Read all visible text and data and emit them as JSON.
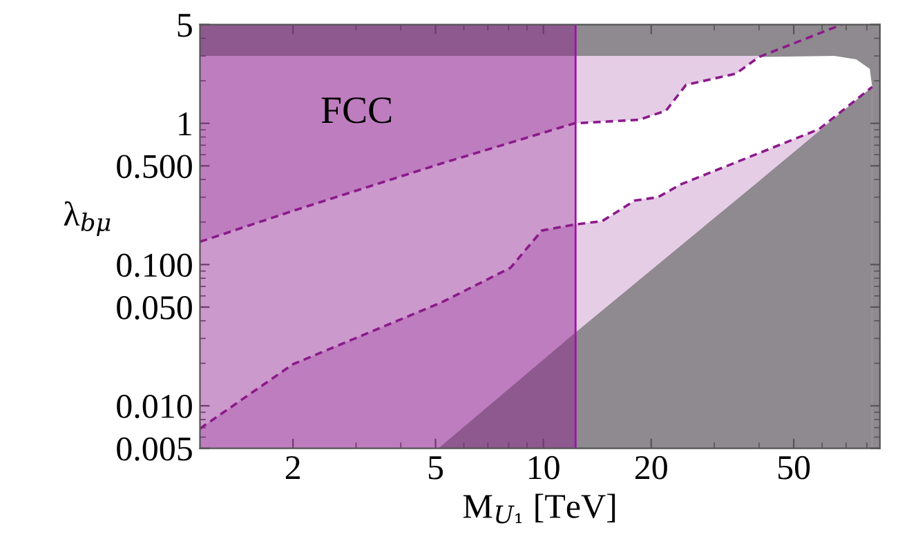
{
  "chart_data": {
    "type": "line",
    "xlabel": "M$_{U₁}$ [TeV]",
    "ylabel": "λ$_{bμ}$",
    "log": "xy",
    "grid": false,
    "xlim": [
      1.1,
      87
    ],
    "xticks": [
      2,
      5,
      10,
      20,
      50
    ],
    "ylim": [
      0.005,
      5
    ],
    "yticks": [
      5,
      1,
      {
        "value": 0.5,
        "label": "0.500"
      },
      {
        "value": 0.1,
        "label": "0.100"
      },
      {
        "value": 0.05,
        "label": "0.050"
      },
      {
        "value": 0.01,
        "label": "0.010"
      },
      {
        "value": 0.005,
        "label": "0.005"
      }
    ],
    "series": [
      {
        "type": "area",
        "color": "#e6cde6",
        "x": [
          1.1,
          40
        ],
        "values": [
          3,
          3
        ]
      },
      {
        "type": "area",
        "color": "#ffffff",
        "x": [
          1.1,
          2,
          5.2,
          8.1,
          12.2,
          14.6,
          18.5,
          22,
          25,
          34.5,
          40,
          65,
          74.7,
          81.5,
          82.8
        ],
        "values": [
          0.145,
          0.24,
          0.52,
          0.73,
          1.0,
          1.03,
          1.06,
          1.23,
          1.87,
          2.25,
          2.95,
          3,
          2.84,
          2.43,
          1.81
        ]
      },
      {
        "type": "area",
        "color": "#8b1a8b",
        "line_style": "dashed",
        "x": [
          1.1,
          2,
          5.2,
          8.1,
          9.9,
          12.2,
          14.6,
          18,
          20.9,
          24.2,
          58.9,
          82.8
        ],
        "values": [
          0.0069,
          0.0197,
          0.054,
          0.095,
          0.174,
          0.192,
          0.203,
          0.284,
          0.3,
          0.37,
          0.91,
          1.81
        ]
      },
      {
        "type": "area",
        "color": "#8f8a8f",
        "x": [
          5.1,
          12.2,
          40,
          82.8
        ],
        "values": [
          0.005,
          0.0325,
          0.39,
          1.81
        ]
      },
      {
        "color": "#8b1a8b",
        "line_style": "dashed",
        "x": [
          1.1,
          2,
          5.2,
          12.2,
          18.5,
          22,
          25,
          34.5,
          40,
          68
        ],
        "values": [
          0.145,
          0.24,
          0.52,
          1.0,
          1.06,
          1.23,
          1.87,
          2.25,
          2.95,
          5
        ]
      }
    ],
    "bands": [
      {
        "axis": "x",
        "from": 1.1,
        "to": 12.3,
        "label": "FCC",
        "color": "#8e1d8e"
      }
    ],
    "ref_lines": [
      {
        "axis": "x",
        "value": 12.3,
        "color": "#a010a8"
      }
    ]
  }
}
